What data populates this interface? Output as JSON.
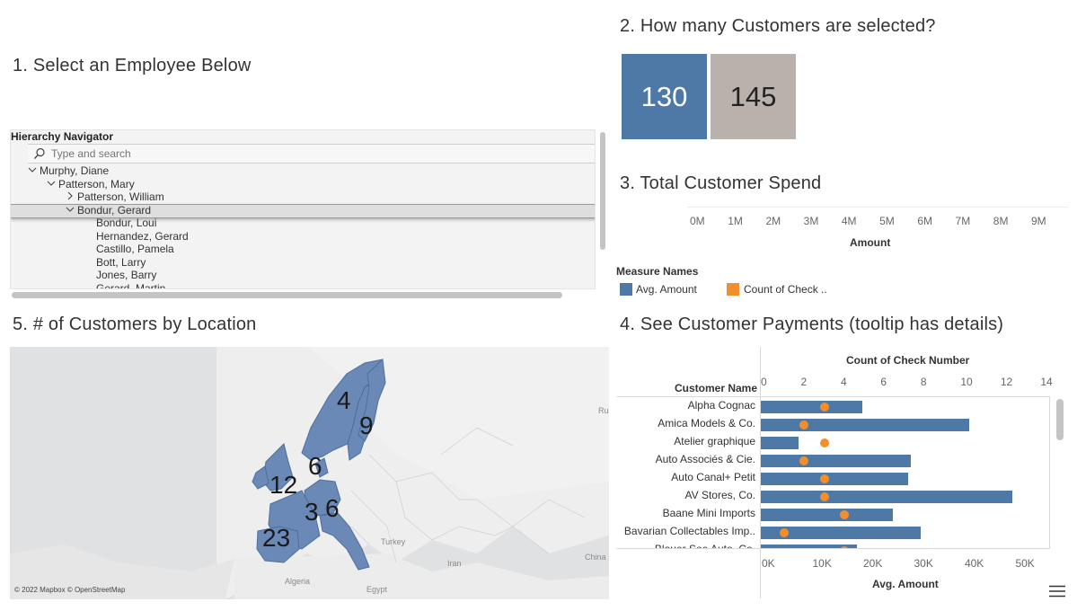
{
  "titles": {
    "employee": "1. Select an Employee Below",
    "customers_selected": "2.  How many Customers are selected?",
    "spend": "3. Total Customer Spend",
    "location": "5. # of Customers by Location",
    "payments": "4.  See Customer Payments (tooltip has details)"
  },
  "hierarchy": {
    "title": "Hierarchy Navigator",
    "search_placeholder": "Type and search",
    "rows": [
      {
        "label": "Murphy, Diane",
        "state": "expanded"
      },
      {
        "label": "Patterson, Mary",
        "state": "expanded"
      },
      {
        "label": "Patterson, William",
        "state": "collapsed"
      },
      {
        "label": "Bondur, Gerard",
        "state": "expanded",
        "selected": true
      },
      {
        "label": "Bondur, Loui",
        "state": "leaf"
      },
      {
        "label": "Hernandez, Gerard",
        "state": "leaf"
      },
      {
        "label": "Castillo, Pamela",
        "state": "leaf"
      },
      {
        "label": "Bott, Larry",
        "state": "leaf"
      },
      {
        "label": "Jones, Barry",
        "state": "leaf"
      },
      {
        "label": "Gerard, Martin",
        "state": "leaf"
      }
    ]
  },
  "kpis": [
    {
      "value": "130",
      "color": "#4e79a7",
      "text_color": "#ffffff"
    },
    {
      "value": "145",
      "color": "#bab0ac",
      "text_color": "#222222"
    }
  ],
  "spend_axis": {
    "ticks": [
      "0M",
      "1M",
      "2M",
      "3M",
      "4M",
      "5M",
      "6M",
      "7M",
      "8M",
      "9M"
    ],
    "title": "Amount"
  },
  "legend": {
    "title": "Measure Names",
    "items": [
      {
        "label": "Avg. Amount",
        "color": "#4e79a7"
      },
      {
        "label": "Count of Check ..",
        "color": "#f28e2b"
      }
    ]
  },
  "map": {
    "attribution": "© 2022 Mapbox © OpenStreetMap",
    "counts": [
      "4",
      "9",
      "6",
      "12",
      "3",
      "6",
      "23"
    ],
    "place_labels": [
      "Turkey",
      "Iran",
      "Algeria",
      "Egypt",
      "China",
      "Rus"
    ]
  },
  "chart_data": {
    "type": "bar",
    "title": "4.  See Customer Payments (tooltip has details)",
    "ylabel": "Customer Name",
    "xlabel": "Avg. Amount",
    "x2label": "Count of Check Number",
    "categories": [
      "Alpha Cognac",
      "Amica Models & Co.",
      "Atelier graphique",
      "Auto Associés & Cie.",
      "Auto Canal+ Petit",
      "AV Stores, Co.",
      "Baane Mini Imports",
      "Bavarian Collectables Imp..",
      "Blauer See Auto, Co."
    ],
    "series": [
      {
        "name": "Avg. Amount",
        "values": [
          20000,
          41000,
          7400,
          29500,
          29000,
          49500,
          26000,
          31500,
          19000
        ],
        "axis": "bottom",
        "color": "#4e79a7"
      },
      {
        "name": "Count of Check Number",
        "values": [
          3,
          2,
          3,
          2,
          3,
          3,
          4,
          1,
          4
        ],
        "axis": "top",
        "color": "#f28e2b"
      }
    ],
    "xlim": [
      0,
      57000
    ],
    "x2lim": [
      0,
      14.3
    ],
    "xticks": [
      "0K",
      "10K",
      "20K",
      "30K",
      "40K",
      "50K"
    ],
    "x2ticks": [
      "0",
      "2",
      "4",
      "6",
      "8",
      "10",
      "12",
      "14"
    ],
    "grid": false
  }
}
